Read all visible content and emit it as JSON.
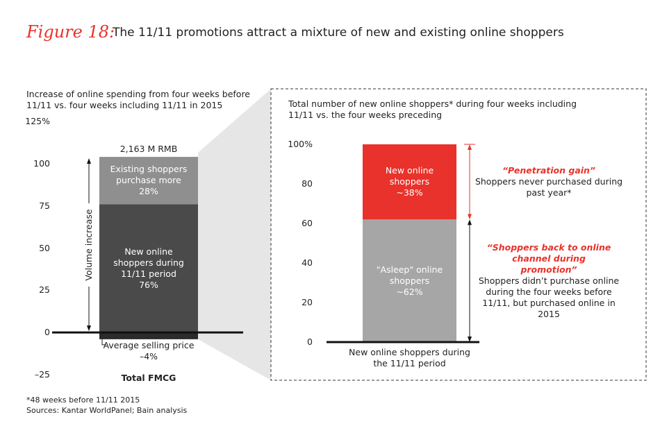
{
  "header": {
    "figure_label": "Figure 18:",
    "title": "The 11/11 promotions attract a mixture of new and existing online shoppers"
  },
  "chart_data": [
    {
      "type": "stacked_bar",
      "title": "Increase of online spending from four weeks before 11/11 vs. four weeks including 11/11 in 2015",
      "categories": [
        "Total FMCG"
      ],
      "series": [
        {
          "name": "Average selling price",
          "color": "#2b2b2b",
          "values": [
            -4
          ],
          "value_labels": [
            "–4%"
          ]
        },
        {
          "name": "New online shoppers during 11/11 period",
          "color": "#4a4a4a",
          "values": [
            76
          ],
          "value_labels": [
            "76%"
          ]
        },
        {
          "name": "Existing shoppers purchase more",
          "color": "#8f8f8f",
          "values": [
            28
          ],
          "value_labels": [
            "28%"
          ]
        }
      ],
      "total_label": "2,163 M RMB",
      "annotation": "Volume increase",
      "ylim": [
        -25,
        125
      ],
      "yticks": [
        {
          "value": -25,
          "label": "–25"
        },
        0,
        25,
        50,
        75,
        100,
        {
          "value": 125,
          "label": "125%"
        }
      ]
    },
    {
      "type": "stacked_bar",
      "title": "Total number of new online shoppers* during four weeks including 11/11 vs. the four weeks preceding",
      "categories": [
        "New online shoppers during the 11/11 period"
      ],
      "series": [
        {
          "name": "\"Asleep\" online shoppers",
          "color": "#a6a6a6",
          "values": [
            62
          ],
          "value_labels": [
            "~62%"
          ]
        },
        {
          "name": "New online shoppers",
          "color": "#e8322b",
          "values": [
            38
          ],
          "value_labels": [
            "~38%"
          ]
        }
      ],
      "annotations": [
        {
          "title": "“Penetration gain”",
          "text": "Shoppers never purchased during past year*"
        },
        {
          "title": "“Shoppers back to online channel during promotion”",
          "text": "Shoppers didn’t purchase online during the four weeks before 11/11, but purchased online in 2015"
        }
      ],
      "ylim": [
        0,
        100
      ],
      "yticks": [
        0,
        20,
        40,
        60,
        80,
        {
          "value": 100,
          "label": "100%"
        }
      ]
    }
  ],
  "footnotes": [
    "*48 weeks before 11/11 2015",
    "Sources: Kantar WorldPanel; Bain analysis"
  ]
}
